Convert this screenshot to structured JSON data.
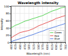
{
  "chart_data": {
    "type": "line",
    "title": "Wavelength intensity",
    "x_label": "Wavelength (nm)",
    "y_label": "Intensity",
    "x": [
      400,
      425,
      450,
      475,
      500,
      525,
      550,
      575,
      600,
      625,
      650,
      675,
      700
    ],
    "series": [
      {
        "name": "Green",
        "color": "#33cc33",
        "values": [
          40,
          47,
          52,
          58,
          62,
          66,
          70,
          74,
          80,
          86,
          90,
          95,
          98
        ]
      },
      {
        "name": "Red",
        "color": "#e03030",
        "values": [
          12,
          20,
          27,
          30,
          33,
          38,
          45,
          50,
          55,
          60,
          66,
          70,
          74
        ]
      },
      {
        "name": "Blue",
        "color": "#3366dd",
        "values": [
          2,
          6,
          10,
          14,
          18,
          22,
          27,
          31,
          36,
          40,
          44,
          48,
          52
        ]
      }
    ],
    "xlim": [
      400,
      700
    ],
    "xticks": [
      400,
      425,
      450,
      475,
      500,
      525,
      550,
      575,
      600,
      625,
      650,
      675,
      700
    ],
    "ylim": [
      0,
      100
    ],
    "yticks": [
      0,
      20,
      40,
      60,
      80,
      100
    ],
    "grid": true,
    "legend": "lower right"
  }
}
